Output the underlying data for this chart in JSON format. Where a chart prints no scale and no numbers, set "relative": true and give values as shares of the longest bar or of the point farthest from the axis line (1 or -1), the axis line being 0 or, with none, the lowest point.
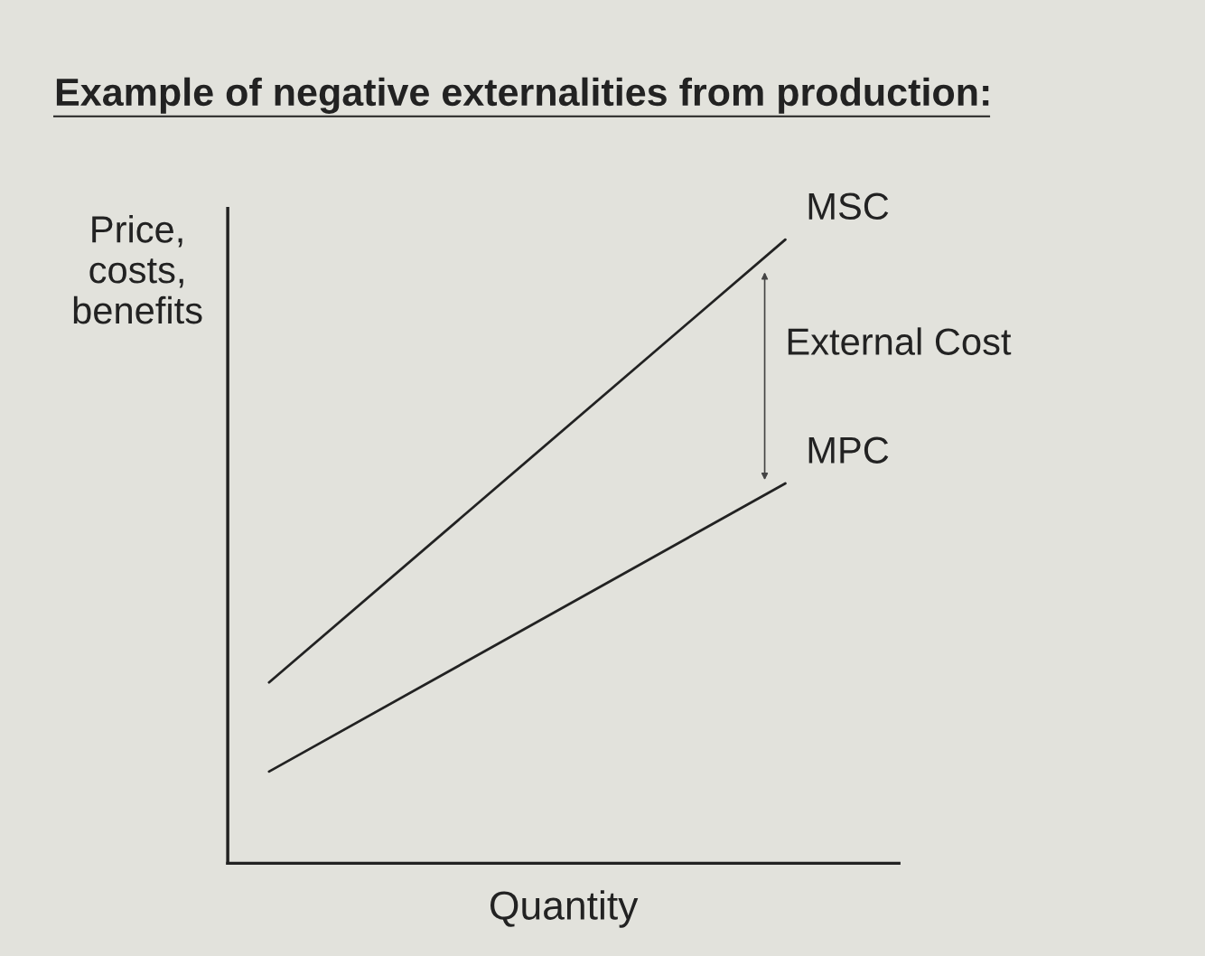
{
  "chart_data": {
    "type": "line",
    "title": "Example of negative externalities from production:",
    "xlabel": "Quantity",
    "ylabel": "Price,\ncosts,\nbenefits",
    "relative": true,
    "legend": false,
    "marker": "none",
    "line_style": "solid",
    "categories": [
      null,
      null
    ],
    "series": [
      {
        "name": "MSC",
        "color": "#222222",
        "values": [
          0.29,
          1.0
        ]
      },
      {
        "name": "MPC",
        "color": "#222222",
        "values": [
          0.147,
          0.609
        ]
      }
    ],
    "annotations": [
      "External Cost"
    ]
  }
}
